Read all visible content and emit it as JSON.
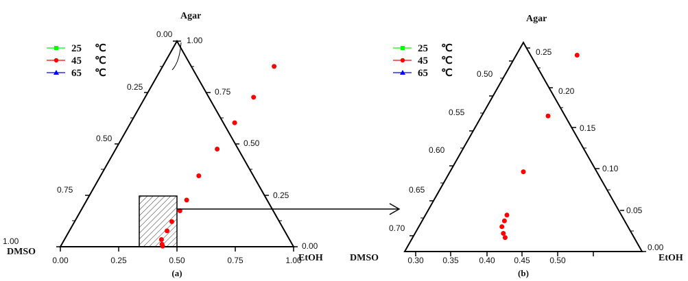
{
  "chart_data": [
    {
      "type": "scatter",
      "kind": "ternary",
      "caption": "(a)",
      "corner_labels": {
        "top": "Agar",
        "left": "DMSO",
        "right": "EtOH"
      },
      "bottom_ticks": [
        "0.00",
        "0.25",
        "0.50",
        "0.75",
        "1.00"
      ],
      "left_ticks": [
        "1.00",
        "0.75",
        "0.50",
        "0.25",
        "0.00"
      ],
      "right_ticks": [
        "0.00",
        "0.25",
        "0.50",
        "0.75",
        "1.00"
      ],
      "legend": [
        {
          "temp": "25",
          "unit": "℃",
          "color": "#00ff00",
          "marker": "square"
        },
        {
          "temp": "45",
          "unit": "℃",
          "color": "#ff0000",
          "marker": "circle"
        },
        {
          "temp": "65",
          "unit": "℃",
          "color": "#0000ff",
          "marker": "triangle"
        }
      ],
      "points_color": "#ff0000",
      "points": [
        {
          "agar": 0.877,
          "etoh": 0.478
        },
        {
          "agar": 0.727,
          "etoh": 0.465
        },
        {
          "agar": 0.603,
          "etoh": 0.446
        },
        {
          "agar": 0.475,
          "etoh": 0.435
        },
        {
          "agar": 0.345,
          "etoh": 0.421
        },
        {
          "agar": 0.227,
          "etoh": 0.428
        },
        {
          "agar": 0.175,
          "etoh": 0.425
        },
        {
          "agar": 0.122,
          "etoh": 0.417
        },
        {
          "agar": 0.077,
          "etoh": 0.419
        },
        {
          "agar": 0.035,
          "etoh": 0.416
        },
        {
          "agar": 0.012,
          "etoh": 0.43
        },
        {
          "agar": 0.003,
          "etoh": 0.437
        }
      ],
      "zoom_region": {
        "etoh": [
          0.35,
          0.5
        ],
        "agar": [
          0.0,
          0.24
        ]
      }
    },
    {
      "type": "scatter",
      "kind": "ternary",
      "caption": "(b)",
      "corner_labels": {
        "top": "Agar",
        "left": "DMSO",
        "right": "EtOH"
      },
      "bottom_ticks": [
        "0.30",
        "0.35",
        "0.40",
        "0.45",
        "0.50"
      ],
      "left_ticks": [
        "0.70",
        "0.65",
        "0.60",
        "0.55",
        "0.50"
      ],
      "right_ticks": [
        "0.00",
        "0.05",
        "0.10",
        "0.15",
        "0.20",
        "0.25"
      ],
      "legend": [
        {
          "temp": "25",
          "unit": "℃",
          "color": "#00ff00",
          "marker": "square"
        },
        {
          "temp": "45",
          "unit": "℃",
          "color": "#ff0000",
          "marker": "circle"
        },
        {
          "temp": "65",
          "unit": "℃",
          "color": "#0000ff",
          "marker": "triangle"
        }
      ],
      "points_color": "#ff0000",
      "points": [
        {
          "agar": 0.221,
          "etoh": 0.415
        },
        {
          "agar": 0.148,
          "etoh": 0.411
        },
        {
          "agar": 0.081,
          "etoh": 0.41
        },
        {
          "agar": 0.029,
          "etoh": 0.413
        },
        {
          "agar": 0.022,
          "etoh": 0.413
        },
        {
          "agar": 0.015,
          "etoh": 0.413
        },
        {
          "agar": 0.007,
          "etoh": 0.419
        },
        {
          "agar": 0.002,
          "etoh": 0.424
        }
      ]
    }
  ]
}
